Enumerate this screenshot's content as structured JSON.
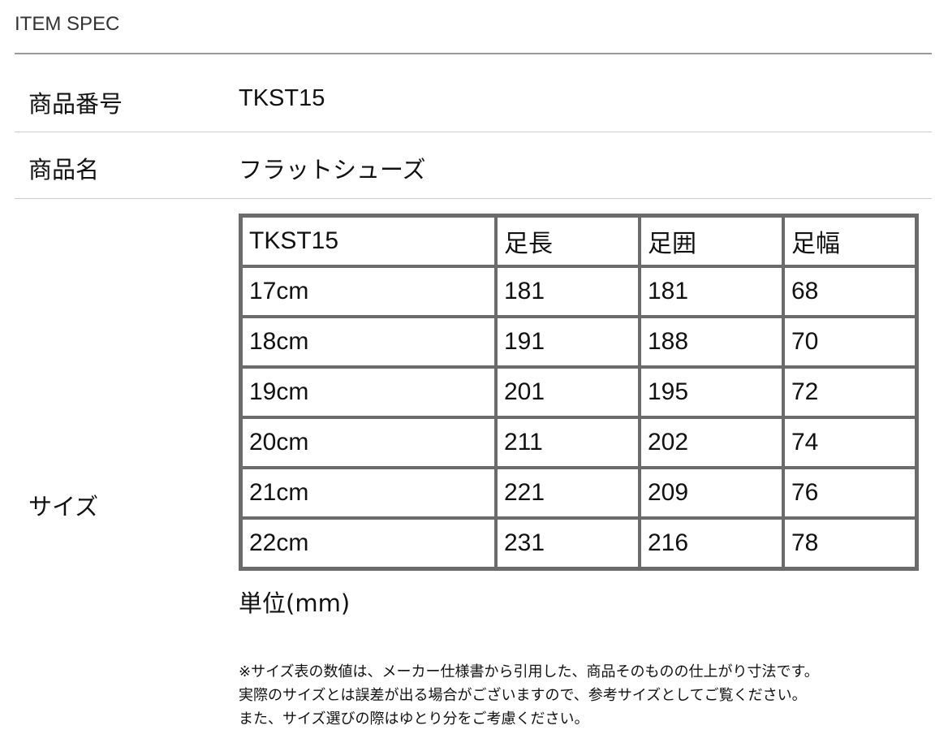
{
  "section_title": "ITEM SPEC",
  "rows": [
    {
      "label": "商品番号",
      "value": "TKST15"
    },
    {
      "label": "商品名",
      "value": "フラットシューズ"
    },
    {
      "label": "サイズ"
    }
  ],
  "size_table": {
    "headers": [
      "TKST15",
      "足長",
      "足囲",
      "足幅"
    ],
    "rows": [
      [
        "17cm",
        "181",
        "181",
        "68"
      ],
      [
        "18cm",
        "191",
        "188",
        "70"
      ],
      [
        "19cm",
        "201",
        "195",
        "72"
      ],
      [
        "20cm",
        "211",
        "202",
        "74"
      ],
      [
        "21cm",
        "221",
        "209",
        "76"
      ],
      [
        "22cm",
        "231",
        "216",
        "78"
      ]
    ],
    "unit": "単位(mm)"
  },
  "notes": [
    "※サイズ表の数値は、メーカー仕様書から引用した、商品そのものの仕上がり寸法です。",
    "実際のサイズとは誤差が出る場合がございますので、参考サイズとしてご覧ください。",
    "また、サイズ選びの際はゆとり分をご考慮ください。"
  ]
}
